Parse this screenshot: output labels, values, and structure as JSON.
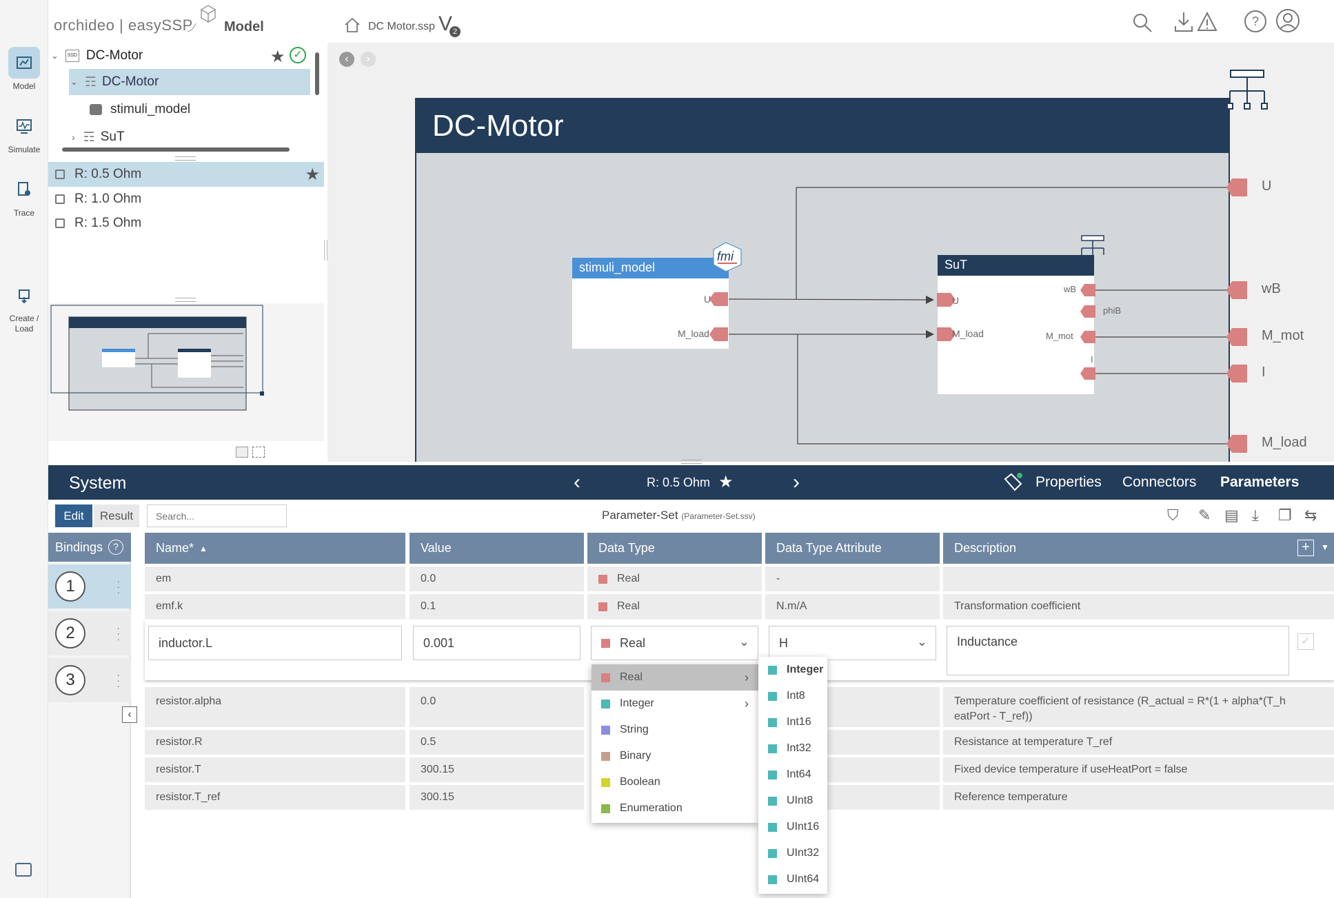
{
  "app": {
    "logo_text": "orchideo | easySSP",
    "section": "Model",
    "file_name": "DC Motor.ssp",
    "version_letter": "V",
    "version_number": "2"
  },
  "rail": [
    {
      "label": "Model",
      "icon": "model-icon"
    },
    {
      "label": "Simulate",
      "icon": "simulate-icon"
    },
    {
      "label": "Trace",
      "icon": "trace-icon"
    },
    {
      "label": "Create / Load",
      "icon": "create-load-icon"
    }
  ],
  "tree": {
    "root": "DC-Motor",
    "child": "DC-Motor",
    "grandchild_1": "stimuli_model",
    "grandchild_2": "SuT"
  },
  "variants": [
    "R: 0.5 Ohm",
    "R: 1.0 Ohm",
    "R: 1.5 Ohm"
  ],
  "diagram": {
    "system_name": "DC-Motor",
    "fmu_name": "stimuli_model",
    "fmu_badge": "fmi",
    "sub_name": "SuT",
    "fmu_ports": [
      "U",
      "M_load"
    ],
    "sut_in_ports": [
      "U",
      "M_load"
    ],
    "sut_out_ports": [
      "wB",
      "phiB",
      "M_mot",
      "I"
    ],
    "system_ports": [
      "U",
      "wB",
      "M_mot",
      "I",
      "M_load"
    ]
  },
  "panel": {
    "title": "System",
    "current_variant": "R: 0.5 Ohm",
    "tabs": [
      "Properties",
      "Connectors",
      "Parameters"
    ],
    "active_tab": "Parameters"
  },
  "toolbar2": {
    "edit": "Edit",
    "result": "Result",
    "search_placeholder": "Search...",
    "set_title": "Parameter-Set",
    "set_file": "(Parameter-Set.ssv)"
  },
  "bindings": {
    "title": "Bindings",
    "items": [
      "1",
      "2",
      "3"
    ]
  },
  "table": {
    "headers": [
      "Name*",
      "Value",
      "Data Type",
      "Data Type Attribute",
      "Description"
    ],
    "rows_top": [
      {
        "name": "em",
        "value": "0.0",
        "type": "Real",
        "attr": "-",
        "desc": ""
      },
      {
        "name": "emf.k",
        "value": "0.1",
        "type": "Real",
        "attr": "N.m/A",
        "desc": "Transformation coefficient"
      }
    ],
    "edit_row": {
      "name": "inductor.L",
      "value": "0.001",
      "type": "Real",
      "attr": "H",
      "desc": "Inductance"
    },
    "rows_bottom": [
      {
        "name": "resistor.alpha",
        "value": "0.0",
        "desc": "Temperature coefficient of resistance (R_actual = R*(1 + alpha*(T_h",
        "desc2": "eatPort - T_ref))"
      },
      {
        "name": "resistor.R",
        "value": "0.5",
        "desc": "Resistance at temperature T_ref",
        "desc2": ""
      },
      {
        "name": "resistor.T",
        "value": "300.15",
        "desc": "Fixed device temperature if useHeatPort = false",
        "desc2": ""
      },
      {
        "name": "resistor.T_ref",
        "value": "300.15",
        "desc": "Reference temperature",
        "desc2": ""
      }
    ]
  },
  "type_menu": [
    {
      "label": "Real",
      "color": "#d98080",
      "sub": true
    },
    {
      "label": "Integer",
      "color": "#4db8b8",
      "sub": true
    },
    {
      "label": "String",
      "color": "#8c8ce0",
      "sub": false
    },
    {
      "label": "Binary",
      "color": "#c4a08c",
      "sub": false
    },
    {
      "label": "Boolean",
      "color": "#d4d430",
      "sub": false
    },
    {
      "label": "Enumeration",
      "color": "#8cb850",
      "sub": false
    }
  ],
  "int_menu": [
    "Integer",
    "Int8",
    "Int16",
    "Int32",
    "Int64",
    "UInt8",
    "UInt16",
    "UInt32",
    "UInt64"
  ],
  "colors": {
    "navy": "#223c5a",
    "header_blue": "#6f87a3",
    "selection": "#c4dbe8",
    "port": "#d98080",
    "fmu_blue": "#4a90d6"
  }
}
